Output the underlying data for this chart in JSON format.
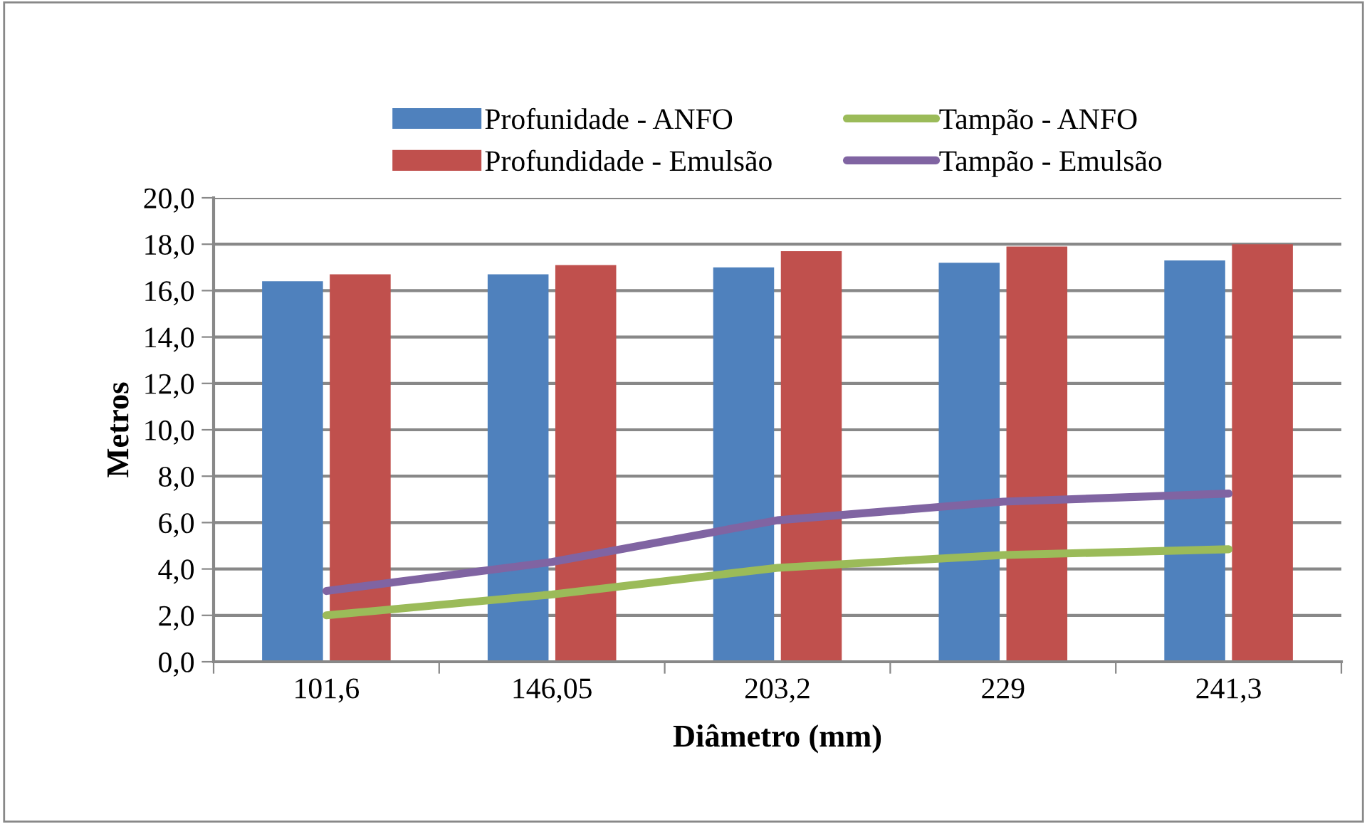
{
  "chart_data": {
    "type": "bar",
    "xlabel": "Diâmetro (mm)",
    "ylabel": "Metros",
    "categories": [
      "101,6",
      "146,05",
      "203,2",
      "229",
      "241,3"
    ],
    "series": [
      {
        "name": "Profunidade - ANFO",
        "color": "#4f81bd",
        "values": [
          16.4,
          16.7,
          17.0,
          17.2,
          17.3
        ]
      },
      {
        "name": "Profundidade - Emulsão",
        "color": "#c0504d",
        "values": [
          16.7,
          17.1,
          17.7,
          17.9,
          18.0
        ]
      },
      {
        "name": "Tampão - ANFO",
        "type": "line",
        "color": "#9bbb59",
        "values": [
          2.0,
          2.9,
          4.05,
          4.6,
          4.85
        ]
      },
      {
        "name": "Tampão - Emulsão",
        "type": "line",
        "color": "#8064a2",
        "values": [
          3.05,
          4.3,
          6.1,
          6.9,
          7.25
        ]
      }
    ],
    "ylim": [
      0,
      20
    ],
    "yticks": [
      {
        "value": 0,
        "label": "0,0"
      },
      {
        "value": 2,
        "label": "2,0"
      },
      {
        "value": 4,
        "label": "4,0"
      },
      {
        "value": 6,
        "label": "6,0"
      },
      {
        "value": 8,
        "label": "8,0"
      },
      {
        "value": 10,
        "label": "10,0"
      },
      {
        "value": 12,
        "label": "12,0"
      },
      {
        "value": 14,
        "label": "14,0"
      },
      {
        "value": 16,
        "label": "16,0"
      },
      {
        "value": 18,
        "label": "18,0"
      },
      {
        "value": 20,
        "label": "20,0"
      }
    ],
    "grid": "y",
    "legend": "top"
  }
}
